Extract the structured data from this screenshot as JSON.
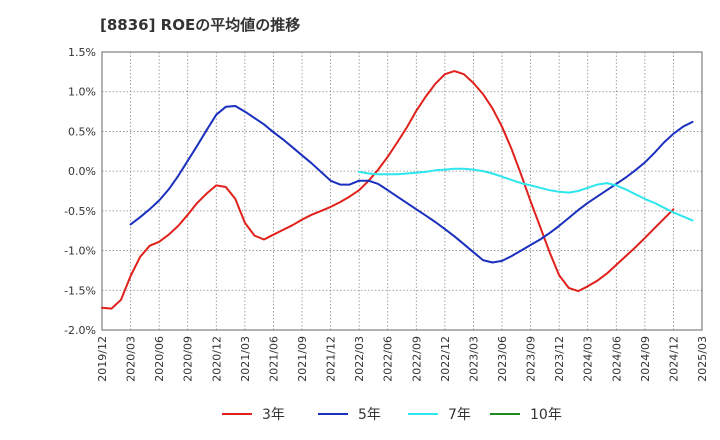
{
  "chart_data": {
    "type": "line",
    "title": "[8836]  ROEの平均値の推移",
    "xlabel": "",
    "ylabel": "",
    "ylim": [
      -2.0,
      1.5
    ],
    "y_ticks": [
      1.5,
      1.0,
      0.5,
      0.0,
      -0.5,
      -1.0,
      -1.5,
      -2.0
    ],
    "y_tick_labels": [
      "1.5%",
      "1.0%",
      "0.5%",
      "0.0%",
      "-0.5%",
      "-1.0%",
      "-1.5%",
      "-2.0%"
    ],
    "x_start": "2019-12",
    "x_end": "2025-03",
    "x_tick_labels": [
      "2019/12",
      "2020/03",
      "2020/06",
      "2020/09",
      "2020/12",
      "2021/03",
      "2021/06",
      "2021/09",
      "2021/12",
      "2022/03",
      "2022/06",
      "2022/09",
      "2022/12",
      "2023/03",
      "2023/06",
      "2023/09",
      "2023/12",
      "2024/03",
      "2024/06",
      "2024/09",
      "2024/12",
      "2025/03"
    ],
    "grid": true,
    "legend_position": "bottom",
    "series": [
      {
        "name": "3年",
        "color": "#e0201b",
        "start": "2019-12",
        "values": [
          -1.72,
          -1.73,
          -1.62,
          -1.32,
          -1.08,
          -0.94,
          -0.89,
          -0.8,
          -0.69,
          -0.55,
          -0.4,
          -0.28,
          -0.18,
          -0.2,
          -0.35,
          -0.65,
          -0.81,
          -0.86,
          -0.8,
          -0.74,
          -0.68,
          -0.61,
          -0.55,
          -0.5,
          -0.45,
          -0.39,
          -0.32,
          -0.24,
          -0.12,
          0.02,
          0.18,
          0.36,
          0.55,
          0.76,
          0.94,
          1.1,
          1.22,
          1.26,
          1.22,
          1.11,
          0.97,
          0.79,
          0.56,
          0.28,
          -0.04,
          -0.38,
          -0.7,
          -1.02,
          -1.31,
          -1.47,
          -1.51,
          -1.45,
          -1.38,
          -1.29,
          -1.18,
          -1.07,
          -0.96,
          -0.84,
          -0.72,
          -0.6,
          -0.48
        ]
      },
      {
        "name": "5年",
        "color": "#1a2fbd",
        "start": "2020-03",
        "values": [
          -0.67,
          -0.58,
          -0.48,
          -0.37,
          -0.23,
          -0.06,
          0.13,
          0.32,
          0.52,
          0.71,
          0.81,
          0.82,
          0.75,
          0.67,
          0.59,
          0.49,
          0.4,
          0.3,
          0.2,
          0.1,
          -0.01,
          -0.12,
          -0.17,
          -0.17,
          -0.12,
          -0.12,
          -0.16,
          -0.24,
          -0.32,
          -0.4,
          -0.48,
          -0.56,
          -0.64,
          -0.73,
          -0.82,
          -0.92,
          -1.02,
          -1.12,
          -1.15,
          -1.13,
          -1.07,
          -1.0,
          -0.93,
          -0.86,
          -0.78,
          -0.69,
          -0.59,
          -0.49,
          -0.4,
          -0.32,
          -0.24,
          -0.16,
          -0.08,
          0.01,
          0.11,
          0.23,
          0.36,
          0.47,
          0.56,
          0.62
        ]
      },
      {
        "name": "7年",
        "color": "#2ee6ee",
        "start": "2022-03",
        "values": [
          -0.01,
          -0.03,
          -0.04,
          -0.04,
          -0.04,
          -0.03,
          -0.02,
          -0.01,
          0.01,
          0.02,
          0.03,
          0.03,
          0.02,
          0.0,
          -0.03,
          -0.07,
          -0.11,
          -0.15,
          -0.18,
          -0.21,
          -0.24,
          -0.26,
          -0.27,
          -0.25,
          -0.21,
          -0.17,
          -0.15,
          -0.18,
          -0.23,
          -0.29,
          -0.35,
          -0.4,
          -0.46,
          -0.52,
          -0.57,
          -0.62
        ]
      },
      {
        "name": "10年",
        "color": "#1f8a1f",
        "start": "2024-12",
        "values": []
      }
    ]
  }
}
